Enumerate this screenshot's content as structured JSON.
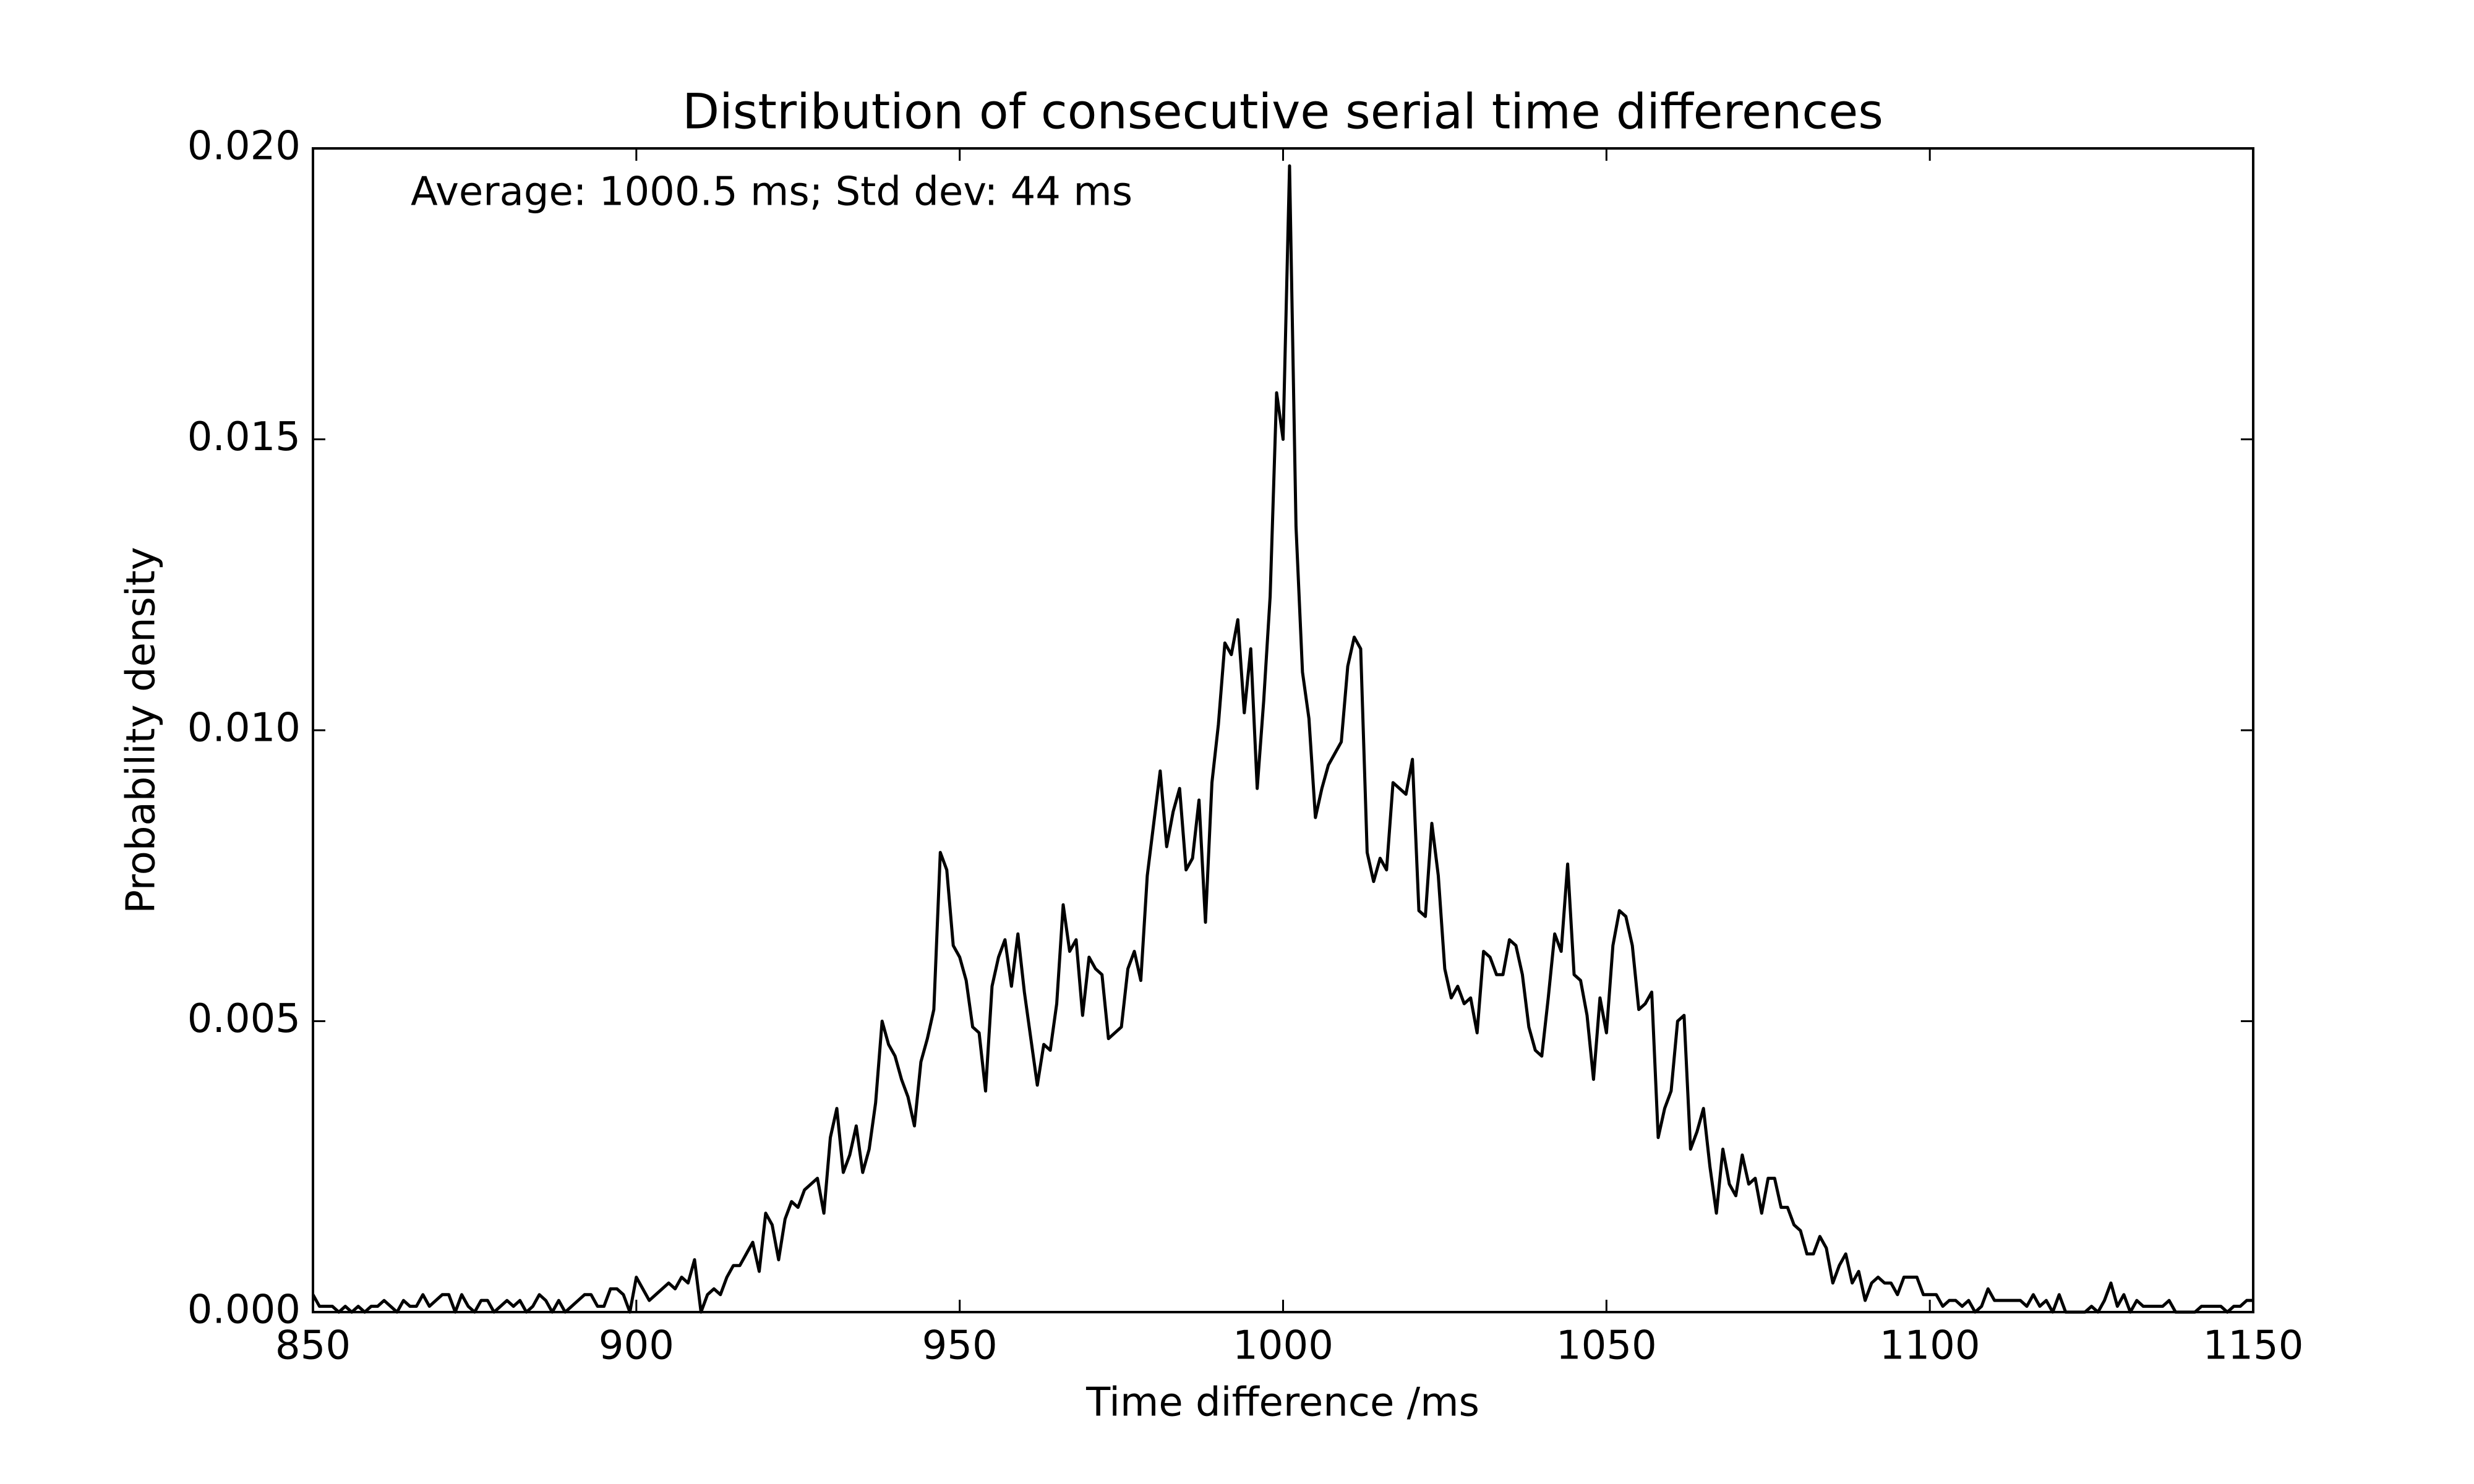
{
  "chart_data": {
    "type": "line",
    "title": "Distribution of consecutive serial time differences",
    "xlabel": "Time difference /ms",
    "ylabel": "Probability density",
    "annotation": "Average: 1000.5 ms;  Std dev: 44 ms",
    "xlim": [
      850,
      1150
    ],
    "ylim": [
      0,
      0.02
    ],
    "xticks": [
      850,
      900,
      950,
      1000,
      1050,
      1100,
      1150
    ],
    "yticks": [
      {
        "value": 0,
        "label": "0.000"
      },
      {
        "value": 0.005,
        "label": "0.005"
      },
      {
        "value": 0.01,
        "label": "0.010"
      },
      {
        "value": 0.015,
        "label": "0.015"
      },
      {
        "value": 0.02,
        "label": "0.020"
      }
    ],
    "grid": false,
    "series": [
      {
        "color": "#000000",
        "x": [
          850,
          851,
          852,
          853,
          854,
          855,
          856,
          857,
          858,
          859,
          860,
          861,
          862,
          863,
          864,
          865,
          866,
          867,
          868,
          869,
          870,
          871,
          872,
          873,
          874,
          875,
          876,
          877,
          878,
          879,
          880,
          881,
          882,
          883,
          884,
          885,
          886,
          887,
          888,
          889,
          890,
          891,
          892,
          893,
          894,
          895,
          896,
          897,
          898,
          899,
          900,
          901,
          902,
          903,
          904,
          905,
          906,
          907,
          908,
          909,
          910,
          911,
          912,
          913,
          914,
          915,
          916,
          917,
          918,
          919,
          920,
          921,
          922,
          923,
          924,
          925,
          926,
          927,
          928,
          929,
          930,
          931,
          932,
          933,
          934,
          935,
          936,
          937,
          938,
          939,
          940,
          941,
          942,
          943,
          944,
          945,
          946,
          947,
          948,
          949,
          950,
          951,
          952,
          953,
          954,
          955,
          956,
          957,
          958,
          959,
          960,
          961,
          962,
          963,
          964,
          965,
          966,
          967,
          968,
          969,
          970,
          971,
          972,
          973,
          974,
          975,
          976,
          977,
          978,
          979,
          980,
          981,
          982,
          983,
          984,
          985,
          986,
          987,
          988,
          989,
          990,
          991,
          992,
          993,
          994,
          995,
          996,
          997,
          998,
          999,
          1000,
          1001,
          1002,
          1003,
          1004,
          1005,
          1006,
          1007,
          1008,
          1009,
          1010,
          1011,
          1012,
          1013,
          1014,
          1015,
          1016,
          1017,
          1018,
          1019,
          1020,
          1021,
          1022,
          1023,
          1024,
          1025,
          1026,
          1027,
          1028,
          1029,
          1030,
          1031,
          1032,
          1033,
          1034,
          1035,
          1036,
          1037,
          1038,
          1039,
          1040,
          1041,
          1042,
          1043,
          1044,
          1045,
          1046,
          1047,
          1048,
          1049,
          1050,
          1051,
          1052,
          1053,
          1054,
          1055,
          1056,
          1057,
          1058,
          1059,
          1060,
          1061,
          1062,
          1063,
          1064,
          1065,
          1066,
          1067,
          1068,
          1069,
          1070,
          1071,
          1072,
          1073,
          1074,
          1075,
          1076,
          1077,
          1078,
          1079,
          1080,
          1081,
          1082,
          1083,
          1084,
          1085,
          1086,
          1087,
          1088,
          1089,
          1090,
          1091,
          1092,
          1093,
          1094,
          1095,
          1096,
          1097,
          1098,
          1099,
          1100,
          1101,
          1102,
          1103,
          1104,
          1105,
          1106,
          1107,
          1108,
          1109,
          1110,
          1111,
          1112,
          1113,
          1114,
          1115,
          1116,
          1117,
          1118,
          1119,
          1120,
          1121,
          1122,
          1123,
          1124,
          1125,
          1126,
          1127,
          1128,
          1129,
          1130,
          1131,
          1132,
          1133,
          1134,
          1135,
          1136,
          1137,
          1138,
          1139,
          1140,
          1141,
          1142,
          1143,
          1144,
          1145,
          1146,
          1147,
          1148,
          1149,
          1150
        ],
        "values": [
          0.0003,
          0.0001,
          0.0001,
          0.0001,
          0,
          0.0001,
          0,
          0.0001,
          0,
          0.0001,
          0.0001,
          0.0002,
          0.0001,
          0,
          0.0002,
          0.0001,
          0.0001,
          0.0003,
          0.0001,
          0.0002,
          0.0003,
          0.0003,
          0,
          0.0003,
          0.0001,
          0,
          0.0002,
          0.0002,
          0,
          0.0001,
          0.0002,
          0.0001,
          0.0002,
          0,
          0.0001,
          0.0003,
          0.0002,
          0,
          0.0002,
          0,
          0.0001,
          0.0002,
          0.0003,
          0.0003,
          0.0001,
          0.0001,
          0.0004,
          0.0004,
          0.0003,
          0,
          0.0006,
          0.0004,
          0.0002,
          0.0003,
          0.0004,
          0.0005,
          0.0004,
          0.0006,
          0.0005,
          0.0009,
          0,
          0.0003,
          0.0004,
          0.0003,
          0.0006,
          0.0008,
          0.0008,
          0.001,
          0.0012,
          0.0007,
          0.0017,
          0.0015,
          0.0009,
          0.0016,
          0.0019,
          0.0018,
          0.0021,
          0.0022,
          0.0023,
          0.0017,
          0.003,
          0.0035,
          0.0024,
          0.0027,
          0.0032,
          0.0024,
          0.0028,
          0.0036,
          0.005,
          0.0046,
          0.0044,
          0.004,
          0.0037,
          0.0032,
          0.0043,
          0.0047,
          0.0052,
          0.0079,
          0.0076,
          0.0063,
          0.0061,
          0.0057,
          0.0049,
          0.0048,
          0.0038,
          0.0056,
          0.0061,
          0.0064,
          0.0056,
          0.0065,
          0.0055,
          0.0047,
          0.0039,
          0.0046,
          0.0045,
          0.0053,
          0.007,
          0.0062,
          0.0064,
          0.0051,
          0.0061,
          0.0059,
          0.0058,
          0.0047,
          0.0048,
          0.0049,
          0.0059,
          0.0062,
          0.0057,
          0.0075,
          0.0084,
          0.0093,
          0.008,
          0.0086,
          0.009,
          0.0076,
          0.0078,
          0.0088,
          0.0067,
          0.0091,
          0.0101,
          0.0115,
          0.0113,
          0.0119,
          0.0103,
          0.0114,
          0.009,
          0.0105,
          0.0123,
          0.0158,
          0.015,
          0.0197,
          0.0135,
          0.011,
          0.0102,
          0.0085,
          0.009,
          0.0094,
          0.0096,
          0.0098,
          0.0111,
          0.0116,
          0.0114,
          0.0079,
          0.0074,
          0.0078,
          0.0076,
          0.0091,
          0.009,
          0.0089,
          0.0095,
          0.0069,
          0.0068,
          0.0084,
          0.0075,
          0.0059,
          0.0054,
          0.0056,
          0.0053,
          0.0054,
          0.0048,
          0.0062,
          0.0061,
          0.0058,
          0.0058,
          0.0064,
          0.0063,
          0.0058,
          0.0049,
          0.0045,
          0.0044,
          0.0054,
          0.0065,
          0.0062,
          0.0077,
          0.0058,
          0.0057,
          0.0051,
          0.004,
          0.0054,
          0.0048,
          0.0063,
          0.0069,
          0.0068,
          0.0063,
          0.0052,
          0.0053,
          0.0055,
          0.003,
          0.0035,
          0.0038,
          0.005,
          0.0051,
          0.0028,
          0.0031,
          0.0035,
          0.0025,
          0.0017,
          0.0028,
          0.0022,
          0.002,
          0.0027,
          0.0022,
          0.0023,
          0.0017,
          0.0023,
          0.0023,
          0.0018,
          0.0018,
          0.0015,
          0.0014,
          0.001,
          0.001,
          0.0013,
          0.0011,
          0.0005,
          0.0008,
          0.001,
          0.0005,
          0.0007,
          0.0002,
          0.0005,
          0.0006,
          0.0005,
          0.0005,
          0.0003,
          0.0006,
          0.0006,
          0.0006,
          0.0003,
          0.0003,
          0.0003,
          0.0001,
          0.0002,
          0.0002,
          0.0001,
          0.0002,
          0,
          0.0001,
          0.0004,
          0.0002,
          0.0002,
          0.0002,
          0.0002,
          0.0002,
          0.0001,
          0.0003,
          0.0001,
          0.0002,
          0,
          0.0003,
          0,
          0,
          0,
          0,
          0.0001,
          0,
          0.0002,
          0.0005,
          0.0001,
          0.0003,
          0,
          0.0002,
          0.0001,
          0.0001,
          0.0001,
          0.0001,
          0.0002,
          0,
          0,
          0,
          0,
          0.0001,
          0.0001,
          0.0001,
          0.0001,
          0,
          0.0001,
          0.0001,
          0.0002,
          0.0002
        ]
      }
    ]
  }
}
